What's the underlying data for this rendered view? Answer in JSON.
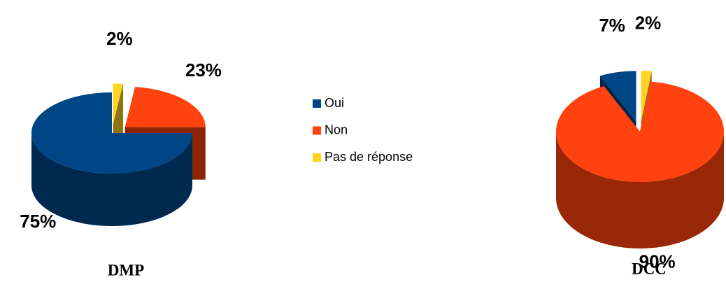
{
  "chart_data": [
    {
      "type": "pie",
      "title": "DMP",
      "values": [
        75,
        23,
        2
      ],
      "value_labels": [
        "75%",
        "23%",
        "2%"
      ]
    },
    {
      "type": "pie",
      "title": "DCC",
      "values": [
        7,
        90,
        2
      ],
      "value_labels": [
        "7%",
        "90%",
        "2%"
      ]
    }
  ],
  "legend": {
    "labels": [
      "Oui",
      "Non",
      "Pas de réponse"
    ],
    "colors": [
      "#004586",
      "#ff420e",
      "#ffd320"
    ]
  }
}
